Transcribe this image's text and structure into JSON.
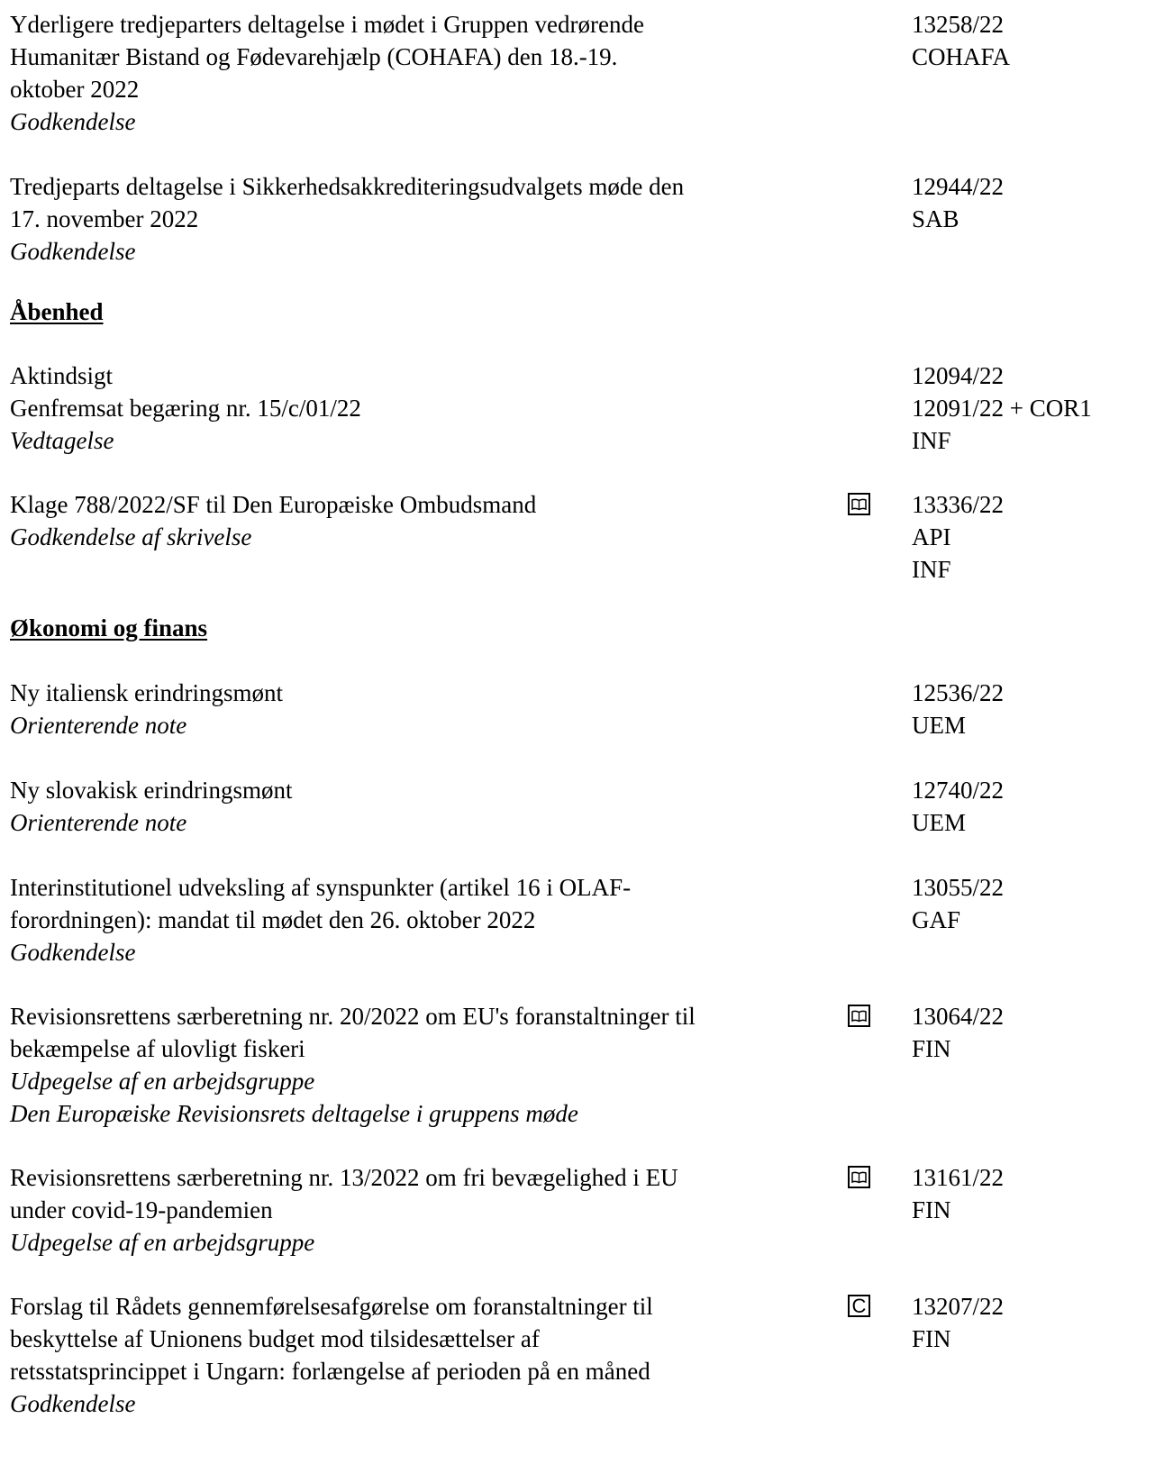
{
  "items": [
    {
      "lines": [
        "Yderligere tredjeparters deltagelse i mødet i Gruppen vedrørende",
        "Humanitær Bistand og Fødevarehjælp (COHAFA) den 18.-19.",
        "oktober 2022"
      ],
      "actions": [
        "Godkendelse"
      ],
      "refs": [
        "13258/22",
        "COHAFA"
      ]
    },
    {
      "lines": [
        "Tredjeparts deltagelse i Sikkerhedsakkrediteringsudvalgets møde den",
        "17. november 2022"
      ],
      "actions": [
        "Godkendelse"
      ],
      "refs": [
        "12944/22",
        "SAB"
      ]
    },
    {
      "lines": [
        "Aktindsigt",
        "Genfremsat begæring nr. 15/c/01/22"
      ],
      "actions": [
        "Vedtagelse"
      ],
      "refs": [
        "12094/22",
        "12091/22 + COR1",
        "INF"
      ]
    },
    {
      "lines": [
        "Klage 788/2022/SF til Den Europæiske Ombudsmand"
      ],
      "actions": [
        "Godkendelse af skrivelse"
      ],
      "refs": [
        "13336/22",
        "API",
        "INF"
      ],
      "symbol": "book-icon"
    },
    {
      "lines": [
        "Ny italiensk erindringsmønt"
      ],
      "actions": [
        "Orienterende note"
      ],
      "refs": [
        "12536/22",
        "UEM"
      ]
    },
    {
      "lines": [
        "Ny slovakisk erindringsmønt"
      ],
      "actions": [
        "Orienterende note"
      ],
      "refs": [
        "12740/22",
        "UEM"
      ]
    },
    {
      "lines": [
        "Interinstitutionel udveksling af synspunkter (artikel 16 i OLAF-",
        "forordningen): mandat til mødet den 26. oktober 2022"
      ],
      "actions": [
        "Godkendelse"
      ],
      "refs": [
        "13055/22",
        "GAF"
      ]
    },
    {
      "lines": [
        "Revisionsrettens særberetning nr. 20/2022 om EU's foranstaltninger til",
        "bekæmpelse af ulovligt fiskeri"
      ],
      "actions": [
        "Udpegelse af en arbejdsgruppe",
        "Den Europæiske Revisionsrets deltagelse i gruppens møde"
      ],
      "refs": [
        "13064/22",
        "FIN"
      ],
      "symbol": "book-icon"
    },
    {
      "lines": [
        "Revisionsrettens særberetning nr. 13/2022 om fri bevægelighed i EU",
        "under covid-19-pandemien"
      ],
      "actions": [
        "Udpegelse af en arbejdsgruppe"
      ],
      "refs": [
        "13161/22",
        "FIN"
      ],
      "symbol": "book-icon"
    },
    {
      "lines": [
        "Forslag til Rådets gennemførelsesafgørelse om foranstaltninger til",
        "beskyttelse af Unionens budget mod tilsidesættelser af",
        "retsstatsprincippet i Ungarn: forlængelse af perioden på en måned"
      ],
      "actions": [
        "Godkendelse"
      ],
      "refs": [
        "13207/22",
        "FIN"
      ],
      "symbol": "c-box-icon",
      "symbol_text": "C"
    }
  ],
  "headings": [
    "Åbenhed",
    "Økonomi og finans"
  ]
}
